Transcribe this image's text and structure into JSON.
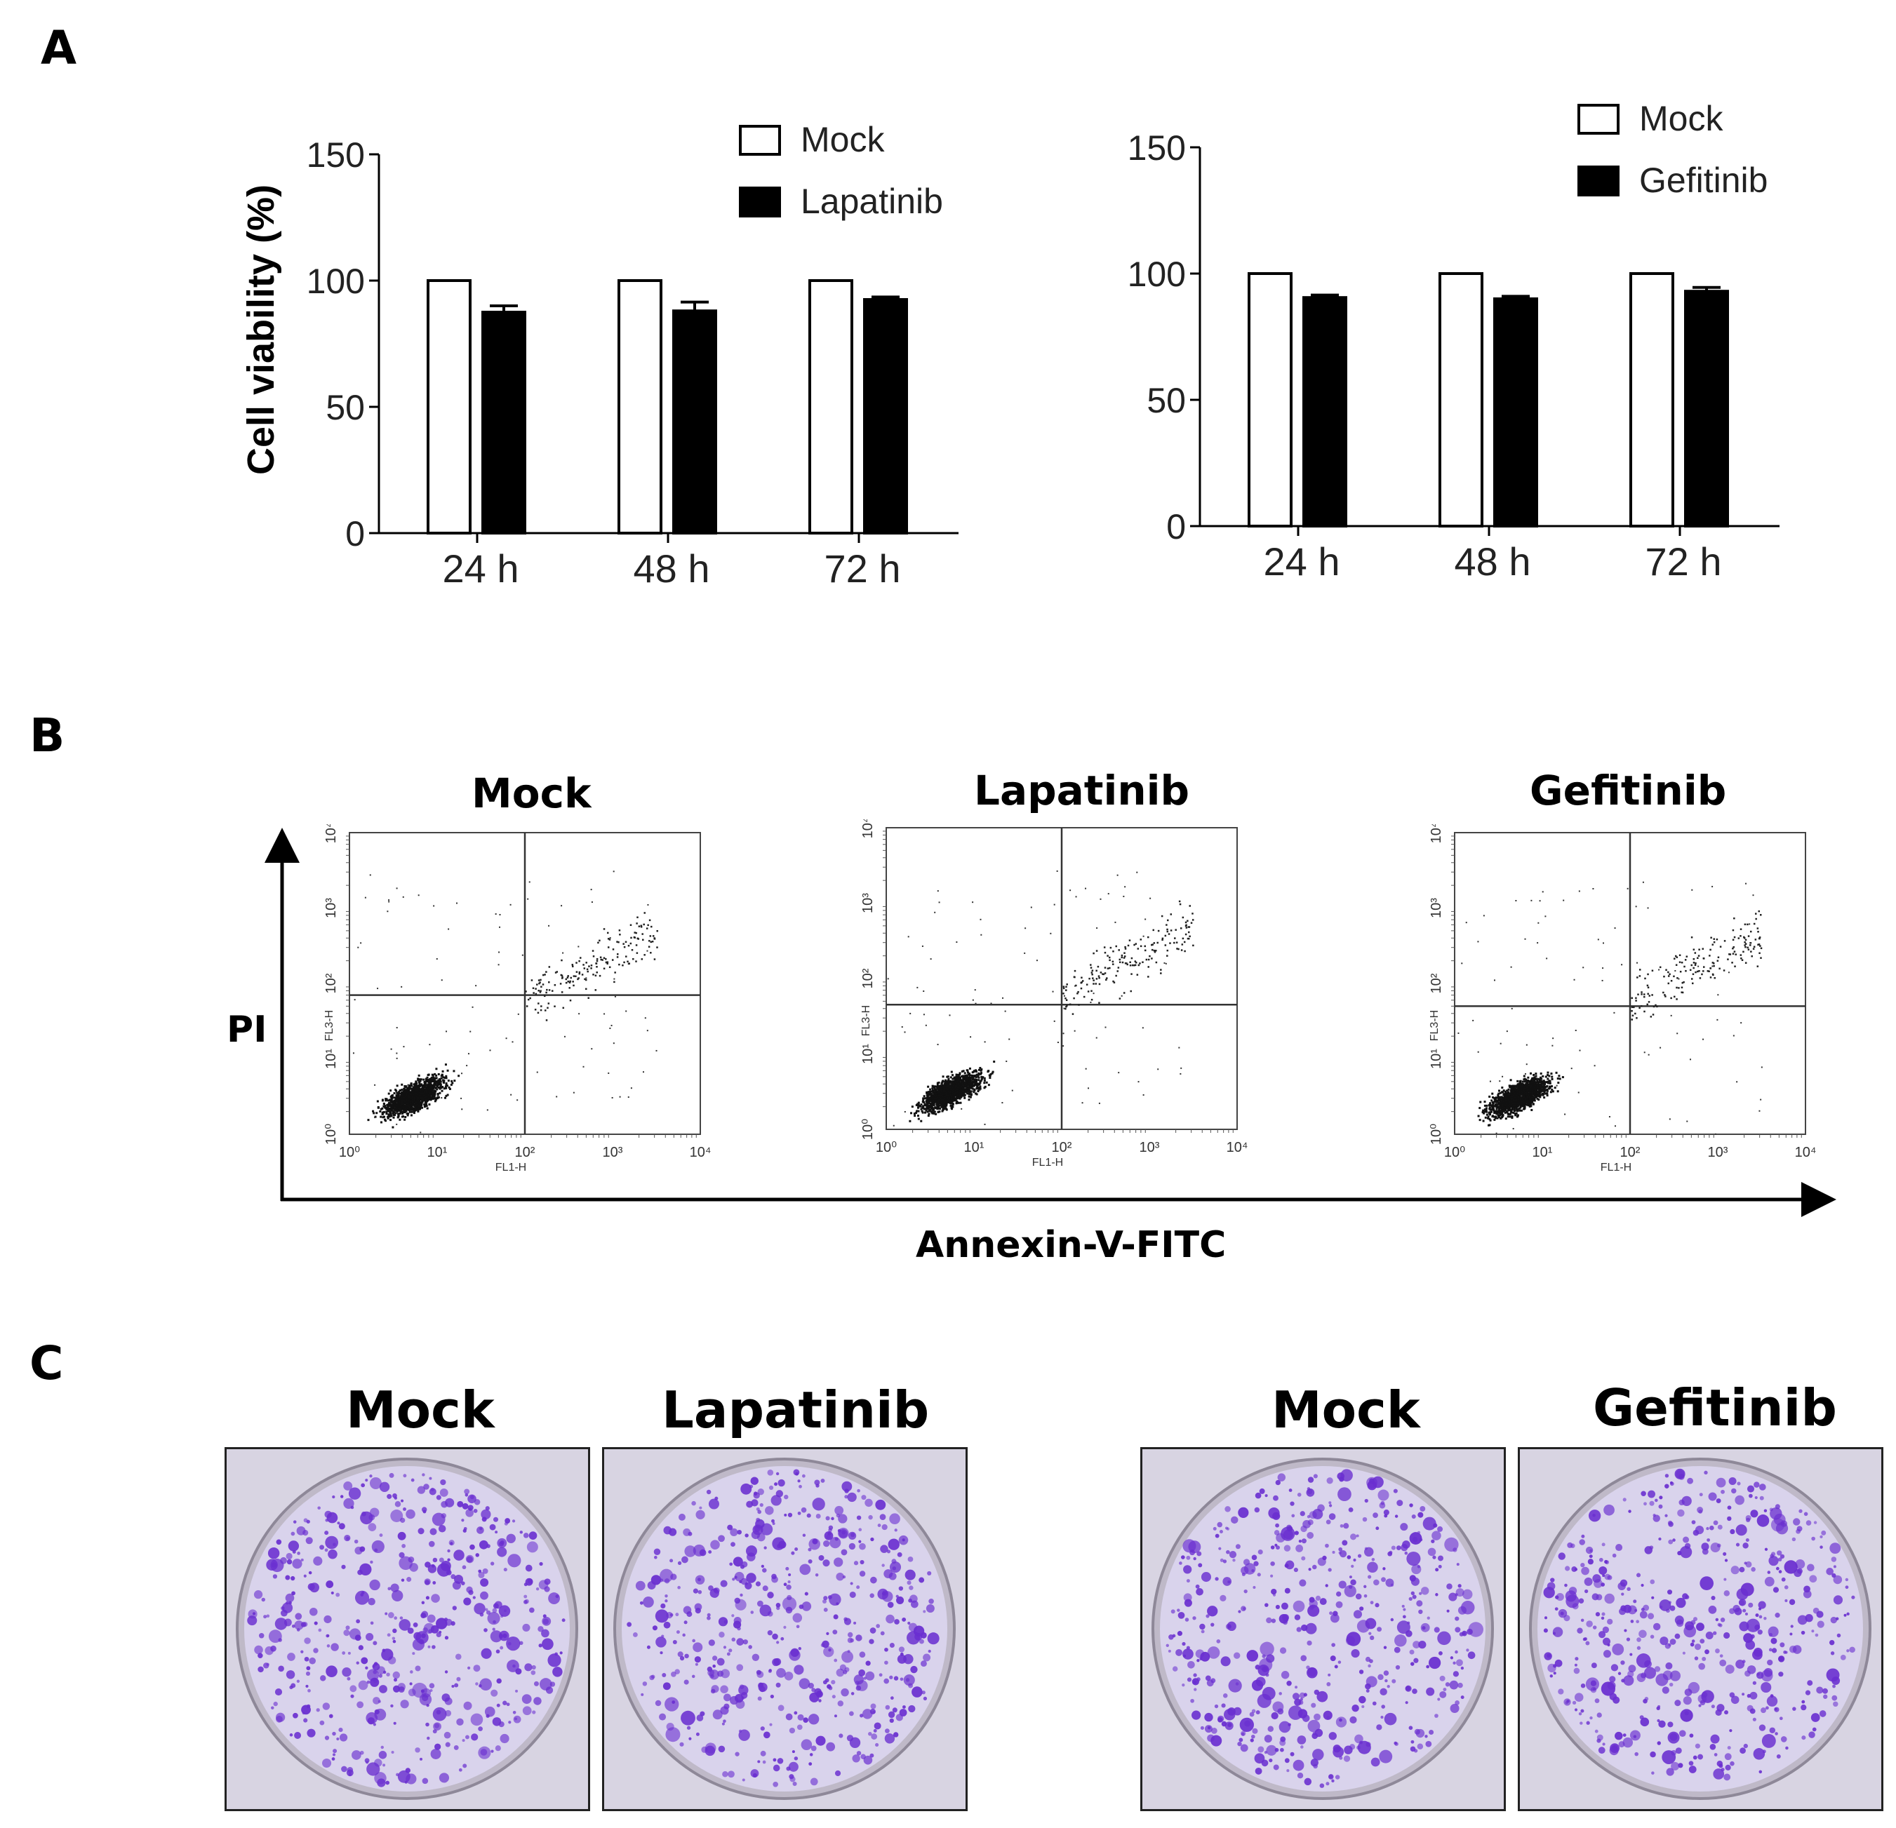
{
  "panels": {
    "a": "A",
    "b": "B",
    "c": "C"
  },
  "chart_data": [
    {
      "type": "bar",
      "title": "",
      "xlabel": "",
      "ylabel": "Cell viability (%)",
      "ylim": [
        0,
        150
      ],
      "yticks": [
        "0",
        "50",
        "100",
        "150"
      ],
      "categories": [
        "24 h",
        "48 h",
        "72 h"
      ],
      "legend_position": "top-right",
      "series": [
        {
          "name": "Mock",
          "color": "#ffffff",
          "values": [
            100,
            100,
            100
          ],
          "errors": [
            0,
            0,
            0
          ]
        },
        {
          "name": "Lapatinib",
          "color": "#000000",
          "values": [
            87.5,
            88,
            92.5
          ],
          "errors": [
            2.5,
            3.5,
            1.0
          ]
        }
      ]
    },
    {
      "type": "bar",
      "title": "",
      "xlabel": "",
      "ylabel": "",
      "ylim": [
        0,
        150
      ],
      "yticks": [
        "0",
        "50",
        "100",
        "150"
      ],
      "categories": [
        "24 h",
        "48 h",
        "72 h"
      ],
      "legend_position": "top-right",
      "series": [
        {
          "name": "Mock",
          "color": "#ffffff",
          "values": [
            100,
            100,
            100
          ],
          "errors": [
            0,
            0,
            0
          ]
        },
        {
          "name": "Gefitinib",
          "color": "#000000",
          "values": [
            90.5,
            90,
            93
          ],
          "errors": [
            1.0,
            1.0,
            1.5
          ]
        }
      ]
    },
    {
      "type": "scatter",
      "title": "Mock",
      "x_label": "FL1-H",
      "y_label": "FL3-H",
      "log_scale": true,
      "axis_range": [
        1,
        10000
      ],
      "tick_labels": [
        "10⁰",
        "10¹",
        "10²",
        "10³",
        "10⁴"
      ],
      "gate_x": 100,
      "gate_y": 70
    },
    {
      "type": "scatter",
      "title": "Lapatinib",
      "x_label": "FL1-H",
      "y_label": "FL3-H",
      "log_scale": true,
      "axis_range": [
        1,
        10000
      ],
      "tick_labels": [
        "10⁰",
        "10¹",
        "10²",
        "10³",
        "10⁴"
      ],
      "gate_x": 100,
      "gate_y": 45
    },
    {
      "type": "scatter",
      "title": "Gefitinib",
      "x_label": "FL1-H",
      "y_label": "FL3-H",
      "log_scale": true,
      "axis_range": [
        1,
        10000
      ],
      "tick_labels": [
        "10⁰",
        "10¹",
        "10²",
        "10³",
        "10⁴"
      ],
      "gate_x": 100,
      "gate_y": 50
    }
  ],
  "flow": {
    "y_axis": "PI",
    "x_axis": "Annexin-V-FITC"
  },
  "colony": {
    "plates": [
      "Mock",
      "Lapatinib",
      "Mock",
      "Gefitinib"
    ],
    "stain_color": "#6a2fd0"
  }
}
